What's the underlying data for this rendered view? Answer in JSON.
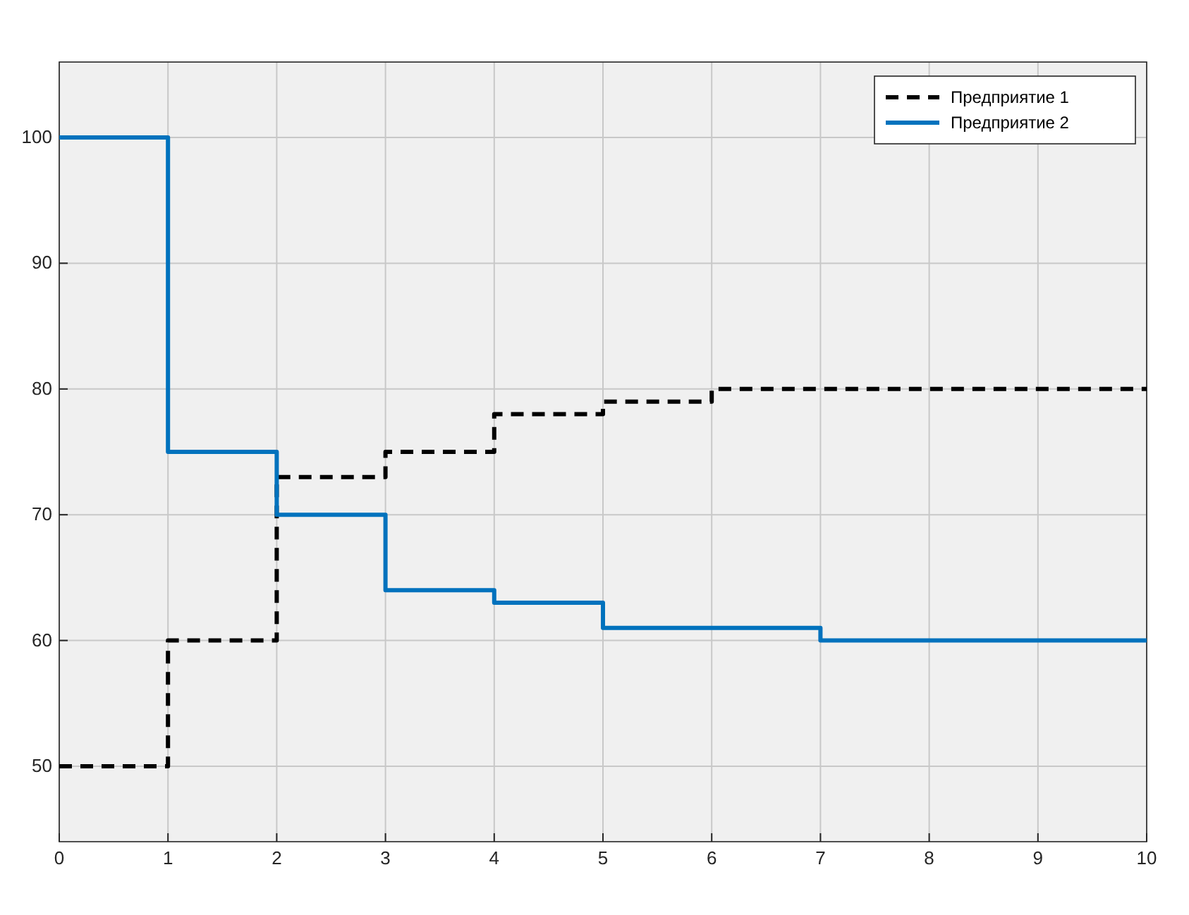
{
  "chart_data": {
    "type": "step",
    "x": [
      0,
      1,
      2,
      3,
      4,
      5,
      6,
      7,
      8,
      9,
      10
    ],
    "series": [
      {
        "name": "Предприятие 1",
        "color": "#000000",
        "line_style": "dashed",
        "values": [
          50,
          60,
          73,
          75,
          78,
          79,
          80,
          80,
          80,
          80,
          80
        ]
      },
      {
        "name": "Предприятие 2",
        "color": "#0072bd",
        "line_style": "solid",
        "values": [
          100,
          75,
          70,
          64,
          63,
          61,
          61,
          60,
          60,
          60,
          60
        ]
      }
    ],
    "xlim": [
      0,
      10
    ],
    "xticks": [
      0,
      1,
      2,
      3,
      4,
      5,
      6,
      7,
      8,
      9,
      10
    ],
    "ylim": [
      44,
      106
    ],
    "yticks": [
      50,
      60,
      70,
      80,
      90,
      100
    ],
    "grid": true,
    "legend": "top right"
  }
}
